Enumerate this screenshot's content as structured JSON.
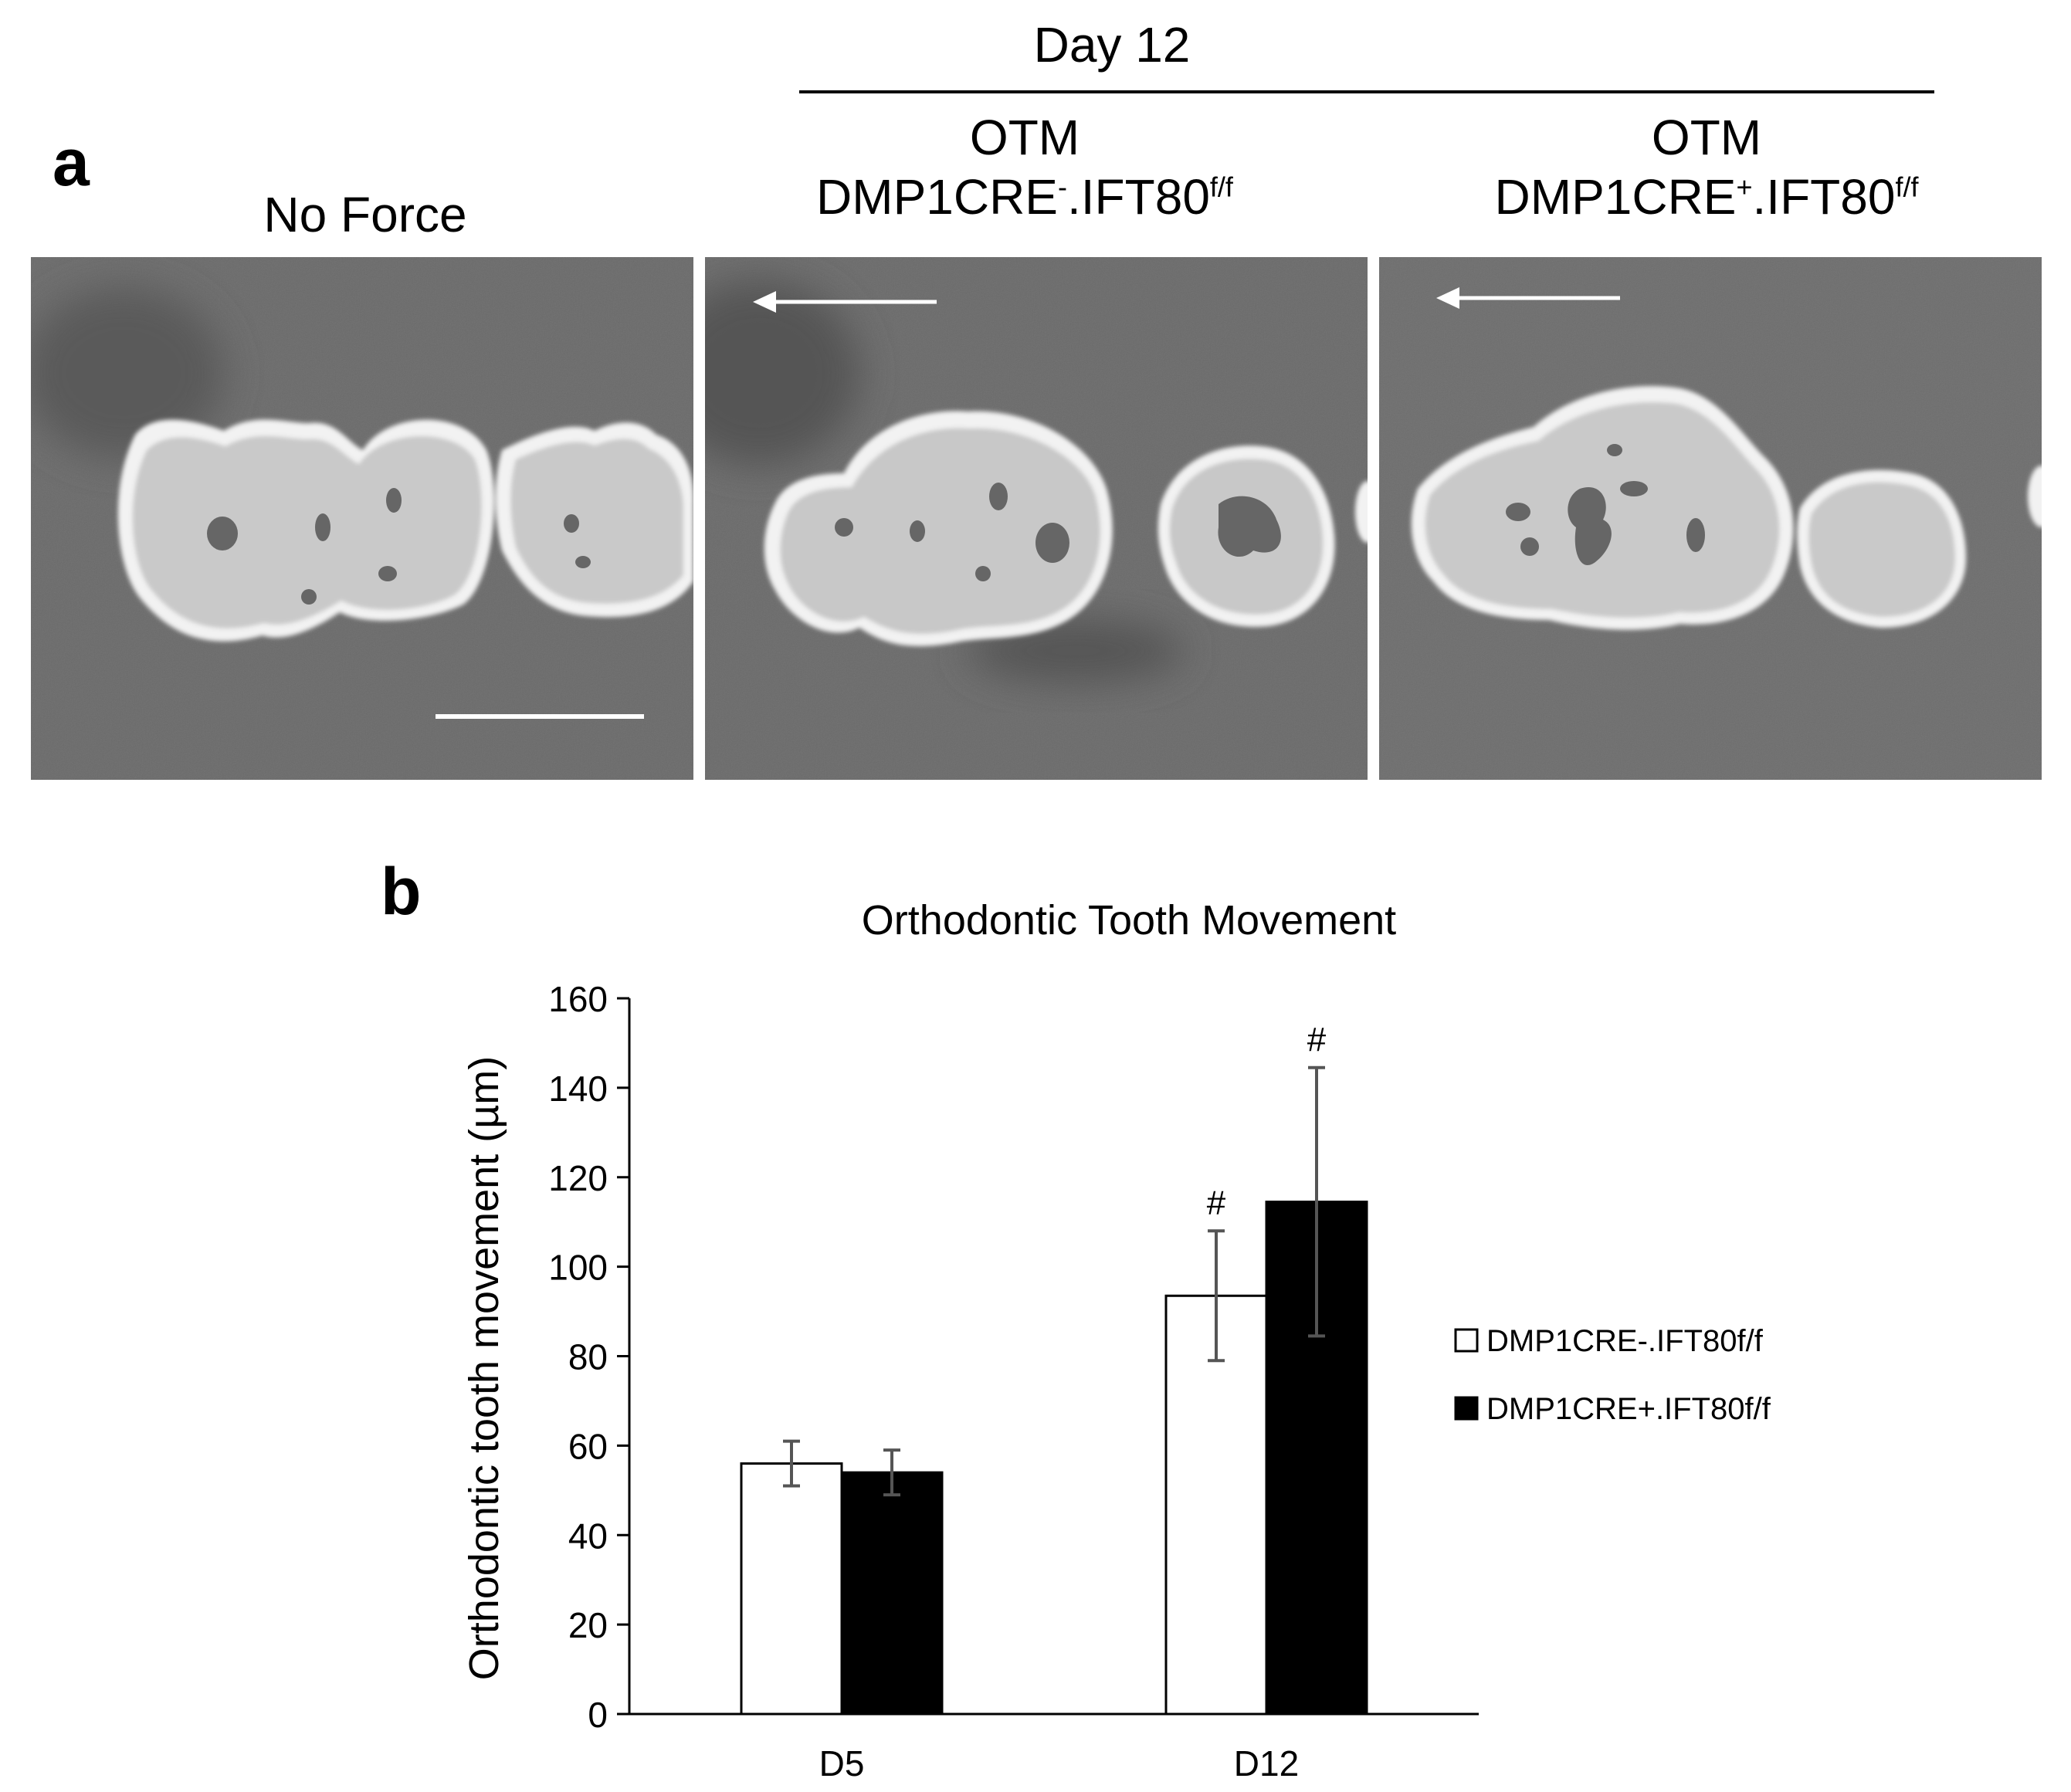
{
  "figure": {
    "panel_a_label": "a",
    "panel_b_label": "b",
    "group_header": "Day 12",
    "columns": [
      {
        "line1": "",
        "line2_main": "No Force",
        "line2_sup_prefix": "",
        "line2_sup": "",
        "line2_suffix": ""
      },
      {
        "line1": "OTM",
        "line2_main": "DMP1CRE",
        "line2_sup_prefix": "-",
        "line2_suffix": ".IFT80",
        "line2_sup": "f/f"
      },
      {
        "line1": "OTM",
        "line2_main": "DMP1CRE",
        "line2_sup_prefix": "+",
        "line2_suffix": ".IFT80",
        "line2_sup": "f/f"
      }
    ],
    "image_icons": [
      "microct-no-force",
      "microct-otm-cre-neg",
      "microct-otm-cre-pos",
      "force-arrow-icon",
      "scale-bar"
    ]
  },
  "chart_data": {
    "type": "bar",
    "title": "Orthodontic Tooth Movement",
    "xlabel": "",
    "ylabel": "Orthodontic tooth movement (µm)",
    "ylim": [
      0,
      160
    ],
    "yticks": [
      0,
      20,
      40,
      60,
      80,
      100,
      120,
      140,
      160
    ],
    "categories": [
      "D5",
      "D12"
    ],
    "series": [
      {
        "name": "DMP1CRE-.IFT80f/f",
        "values": [
          56,
          93.5
        ],
        "errors": [
          5,
          14.5
        ],
        "annotations": [
          "",
          "#"
        ],
        "color": "#ffffff"
      },
      {
        "name": "DMP1CRE+.IFT80f/f",
        "values": [
          54,
          114.5
        ],
        "errors": [
          5,
          30
        ],
        "annotations": [
          "",
          "#"
        ],
        "color": "#000000"
      }
    ],
    "legend_position": "right",
    "grid": false
  }
}
